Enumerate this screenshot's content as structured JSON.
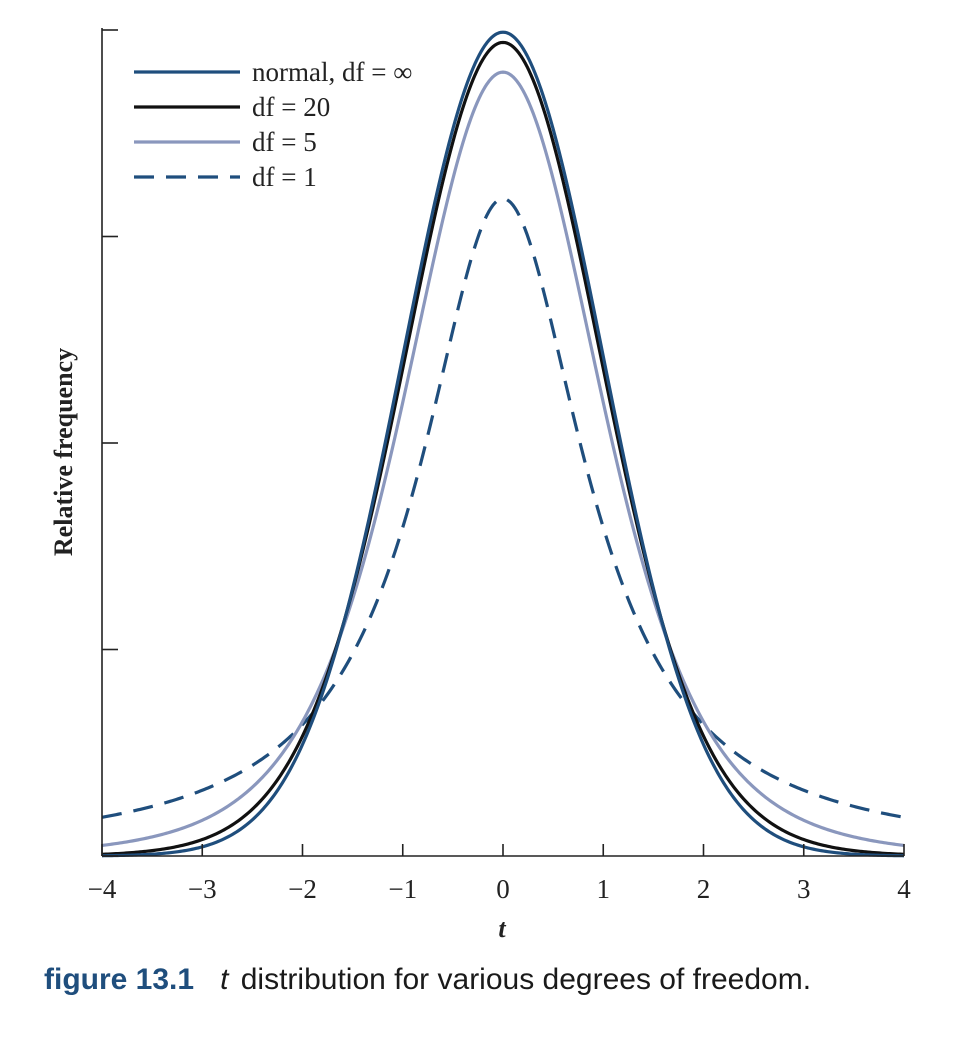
{
  "chart_data": {
    "type": "line",
    "title": "",
    "xlabel": "t",
    "ylabel": "Relative frequency",
    "xlim": [
      -4,
      4
    ],
    "ylim": [
      0,
      0.4
    ],
    "x_ticks": [
      -4,
      -3,
      -2,
      -1,
      0,
      1,
      2,
      3,
      4
    ],
    "x_tick_labels": [
      "−4",
      "−3",
      "−2",
      "−1",
      "0",
      "1",
      "2",
      "3",
      "4"
    ],
    "y_ticks": [
      0,
      0.1,
      0.2,
      0.3,
      0.4
    ],
    "grid": false,
    "legend_position": "top-left",
    "series": [
      {
        "name": "normal, df = ∞",
        "df": "inf",
        "color": "#1f4e7d",
        "style": "solid",
        "peak": 0.399,
        "values_at_ticks": [
          0.0001,
          0.0044,
          0.054,
          0.242,
          0.399,
          0.242,
          0.054,
          0.0044,
          0.0001
        ]
      },
      {
        "name": "df = 20",
        "df": 20,
        "color": "#111111",
        "style": "solid",
        "peak": 0.394,
        "values_at_ticks": [
          0.0008,
          0.0075,
          0.058,
          0.237,
          0.394,
          0.237,
          0.058,
          0.0075,
          0.0008
        ]
      },
      {
        "name": "df = 5",
        "df": 5,
        "color": "#8a97bd",
        "style": "solid",
        "peak": 0.38,
        "values_at_ticks": [
          0.0051,
          0.0173,
          0.065,
          0.22,
          0.38,
          0.22,
          0.065,
          0.0173,
          0.0051
        ]
      },
      {
        "name": "df = 1",
        "df": 1,
        "color": "#1f4e7d",
        "style": "dashed",
        "peak": 0.318,
        "values_at_ticks": [
          0.0187,
          0.0318,
          0.064,
          0.159,
          0.318,
          0.159,
          0.064,
          0.0318,
          0.0187
        ]
      }
    ]
  },
  "caption": {
    "label": "figure  13.1",
    "variable": "t",
    "text": "distribution for various degrees of freedom."
  }
}
